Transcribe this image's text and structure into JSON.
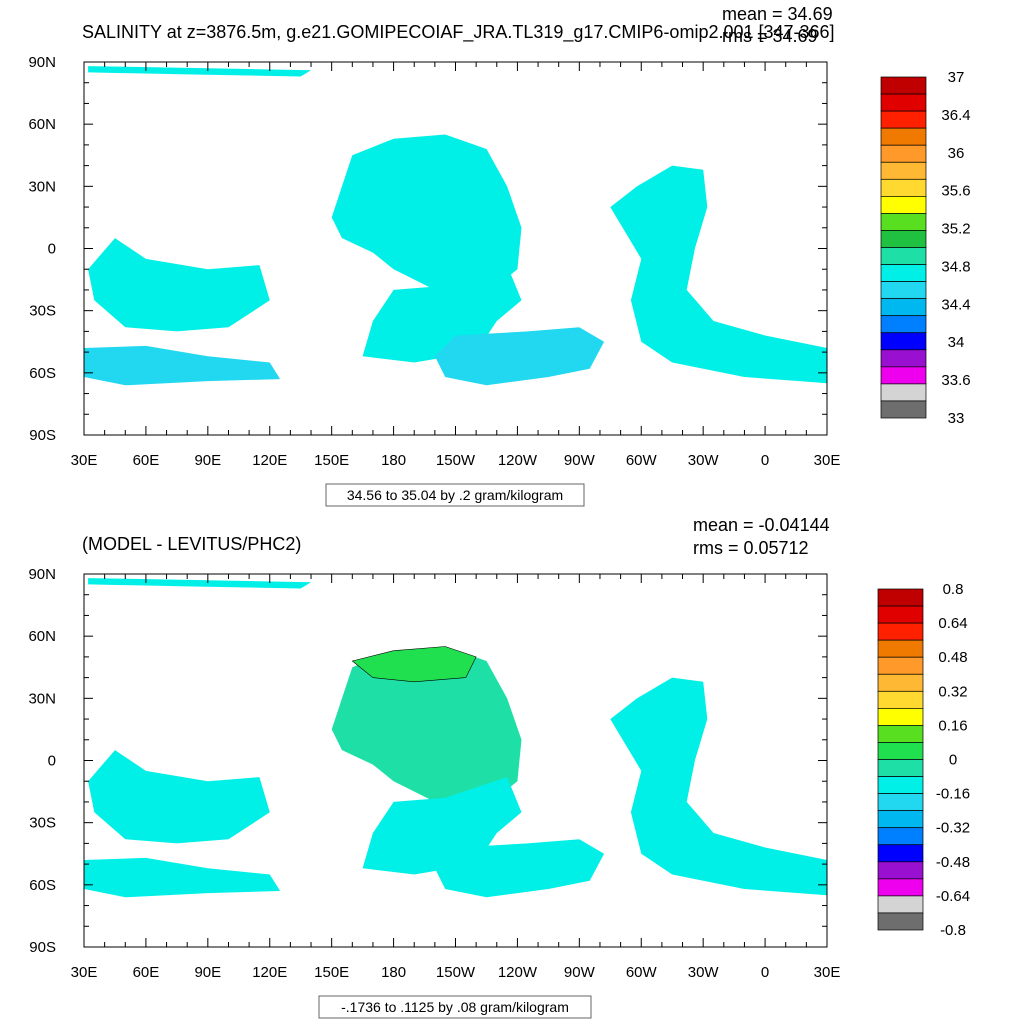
{
  "chart_data": [
    {
      "type": "heatmap",
      "title": "SALINITY at z=3876.5m, g.e21.GOMIPECOIAF_JRA.TL319_g17.CMIP6-omip2.001 [347-366]",
      "stats": {
        "mean": "mean = 34.69",
        "rms": "rms = 34.69"
      },
      "x_ticks": [
        "30E",
        "60E",
        "90E",
        "120E",
        "150E",
        "180",
        "150W",
        "120W",
        "90W",
        "60W",
        "30W",
        "0",
        "30E"
      ],
      "y_ticks": [
        "90N",
        "60N",
        "30N",
        "0",
        "30S",
        "60S",
        "90S"
      ],
      "colorbar": {
        "labels": [
          "37",
          "36.4",
          "36",
          "35.6",
          "35.2",
          "34.8",
          "34.4",
          "34",
          "33.6",
          "33"
        ],
        "colors": [
          "#c00000",
          "#e00000",
          "#ff2000",
          "#f07a00",
          "#ff9a2a",
          "#ffb833",
          "#ffd830",
          "#ffff00",
          "#58e020",
          "#20c040",
          "#1ee0a6",
          "#00f0e8",
          "#22d8f0",
          "#00b8f0",
          "#0080ff",
          "#0000ff",
          "#9a10d0",
          "#ee00ee",
          "#d4d4d4",
          "#6e6e6e"
        ]
      },
      "info_box": "34.56 to 35.04 by .2 gram/kilogram"
    },
    {
      "type": "heatmap",
      "title": "(MODEL - LEVITUS/PHC2)",
      "stats": {
        "mean": "mean = -0.04144",
        "rms": "rms = 0.05712"
      },
      "x_ticks": [
        "30E",
        "60E",
        "90E",
        "120E",
        "150E",
        "180",
        "150W",
        "120W",
        "90W",
        "60W",
        "30W",
        "0",
        "30E"
      ],
      "y_ticks": [
        "90N",
        "60N",
        "30N",
        "0",
        "30S",
        "60S",
        "90S"
      ],
      "colorbar": {
        "labels": [
          "0.8",
          "0.64",
          "0.48",
          "0.32",
          "0.16",
          "0",
          "-0.16",
          "-0.32",
          "-0.48",
          "-0.64",
          "-0.8"
        ],
        "colors": [
          "#c00000",
          "#e00000",
          "#ff2000",
          "#f07a00",
          "#ff9a2a",
          "#ffb833",
          "#ffd830",
          "#ffff00",
          "#58e020",
          "#20e050",
          "#1ee0a6",
          "#00f0e8",
          "#22d8f0",
          "#00b8f0",
          "#0080ff",
          "#0000ff",
          "#9a10d0",
          "#ee00ee",
          "#d4d4d4",
          "#6e6e6e"
        ]
      },
      "info_box": "-.1736 to .1125 by .08 gram/kilogram"
    }
  ]
}
